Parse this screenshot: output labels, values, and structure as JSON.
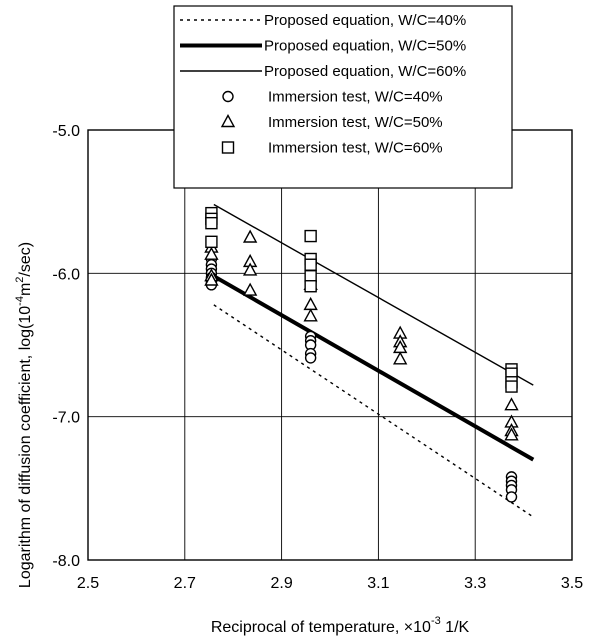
{
  "chart_data": {
    "type": "scatter",
    "xlabel": "Reciprocal of temperature, ×10",
    "xlabel_exp": "-3",
    "xlabel_unit": "1/K",
    "ylabel": "Logarithm of diffusion coefficient, log(10",
    "ylabel_exp1": "-4",
    "ylabel_mid": "m",
    "ylabel_exp2": "2",
    "ylabel_end": "/sec)",
    "xlim": [
      2.5,
      3.5
    ],
    "ylim": [
      -8.0,
      -5.0
    ],
    "x_ticks": [
      2.5,
      2.7,
      2.9,
      3.1,
      3.3,
      3.5
    ],
    "x_tick_labels": [
      "2.5",
      "2.7",
      "2.9",
      "3.1",
      "3.3",
      "3.5"
    ],
    "y_ticks": [
      -5.0,
      -6.0,
      -7.0,
      -8.0
    ],
    "y_tick_labels": [
      "-5.0",
      "-6.0",
      "-7.0",
      "-8.0"
    ],
    "grid": true,
    "legend_position": "top-right",
    "lines": [
      {
        "name": "Proposed equation, W/C=40%",
        "style": "dotted",
        "x": [
          2.76,
          3.42
        ],
        "y": [
          -6.22,
          -7.7
        ]
      },
      {
        "name": "Proposed equation, W/C=50%",
        "style": "thick",
        "x": [
          2.76,
          3.42
        ],
        "y": [
          -6.02,
          -7.3
        ]
      },
      {
        "name": "Proposed equation, W/C=60%",
        "style": "thin",
        "x": [
          2.76,
          3.42
        ],
        "y": [
          -5.52,
          -6.78
        ]
      }
    ],
    "series": [
      {
        "name": "Immersion test, W/C=40%",
        "marker": "circle",
        "points": [
          [
            2.755,
            -5.9
          ],
          [
            2.755,
            -5.94
          ],
          [
            2.755,
            -5.97
          ],
          [
            2.755,
            -6.0
          ],
          [
            2.755,
            -6.03
          ],
          [
            2.755,
            -6.06
          ],
          [
            2.755,
            -6.08
          ],
          [
            2.96,
            -6.44
          ],
          [
            2.96,
            -6.47
          ],
          [
            2.96,
            -6.5
          ],
          [
            2.96,
            -6.56
          ],
          [
            2.96,
            -6.59
          ],
          [
            3.375,
            -7.42
          ],
          [
            3.375,
            -7.45
          ],
          [
            3.375,
            -7.48
          ],
          [
            3.375,
            -7.51
          ],
          [
            3.375,
            -7.56
          ]
        ]
      },
      {
        "name": "Immersion test, W/C=50%",
        "marker": "triangle",
        "points": [
          [
            2.755,
            -5.82
          ],
          [
            2.755,
            -5.87
          ],
          [
            2.755,
            -6.02
          ],
          [
            2.755,
            -6.05
          ],
          [
            2.835,
            -5.75
          ],
          [
            2.835,
            -5.92
          ],
          [
            2.835,
            -5.98
          ],
          [
            2.835,
            -6.12
          ],
          [
            2.96,
            -6.08
          ],
          [
            2.96,
            -6.22
          ],
          [
            2.96,
            -6.3
          ],
          [
            3.145,
            -6.42
          ],
          [
            3.145,
            -6.48
          ],
          [
            3.145,
            -6.52
          ],
          [
            3.145,
            -6.6
          ],
          [
            3.375,
            -6.92
          ],
          [
            3.375,
            -7.04
          ],
          [
            3.375,
            -7.1
          ],
          [
            3.375,
            -7.13
          ]
        ]
      },
      {
        "name": "Immersion test, W/C=60%",
        "marker": "square",
        "points": [
          [
            2.755,
            -5.58
          ],
          [
            2.755,
            -5.62
          ],
          [
            2.755,
            -5.65
          ],
          [
            2.755,
            -5.78
          ],
          [
            2.96,
            -5.74
          ],
          [
            2.96,
            -5.9
          ],
          [
            2.96,
            -5.94
          ],
          [
            2.96,
            -6.02
          ],
          [
            2.96,
            -6.09
          ],
          [
            3.375,
            -6.67
          ],
          [
            3.375,
            -6.7
          ],
          [
            3.375,
            -6.76
          ],
          [
            3.375,
            -6.79
          ]
        ]
      }
    ]
  }
}
